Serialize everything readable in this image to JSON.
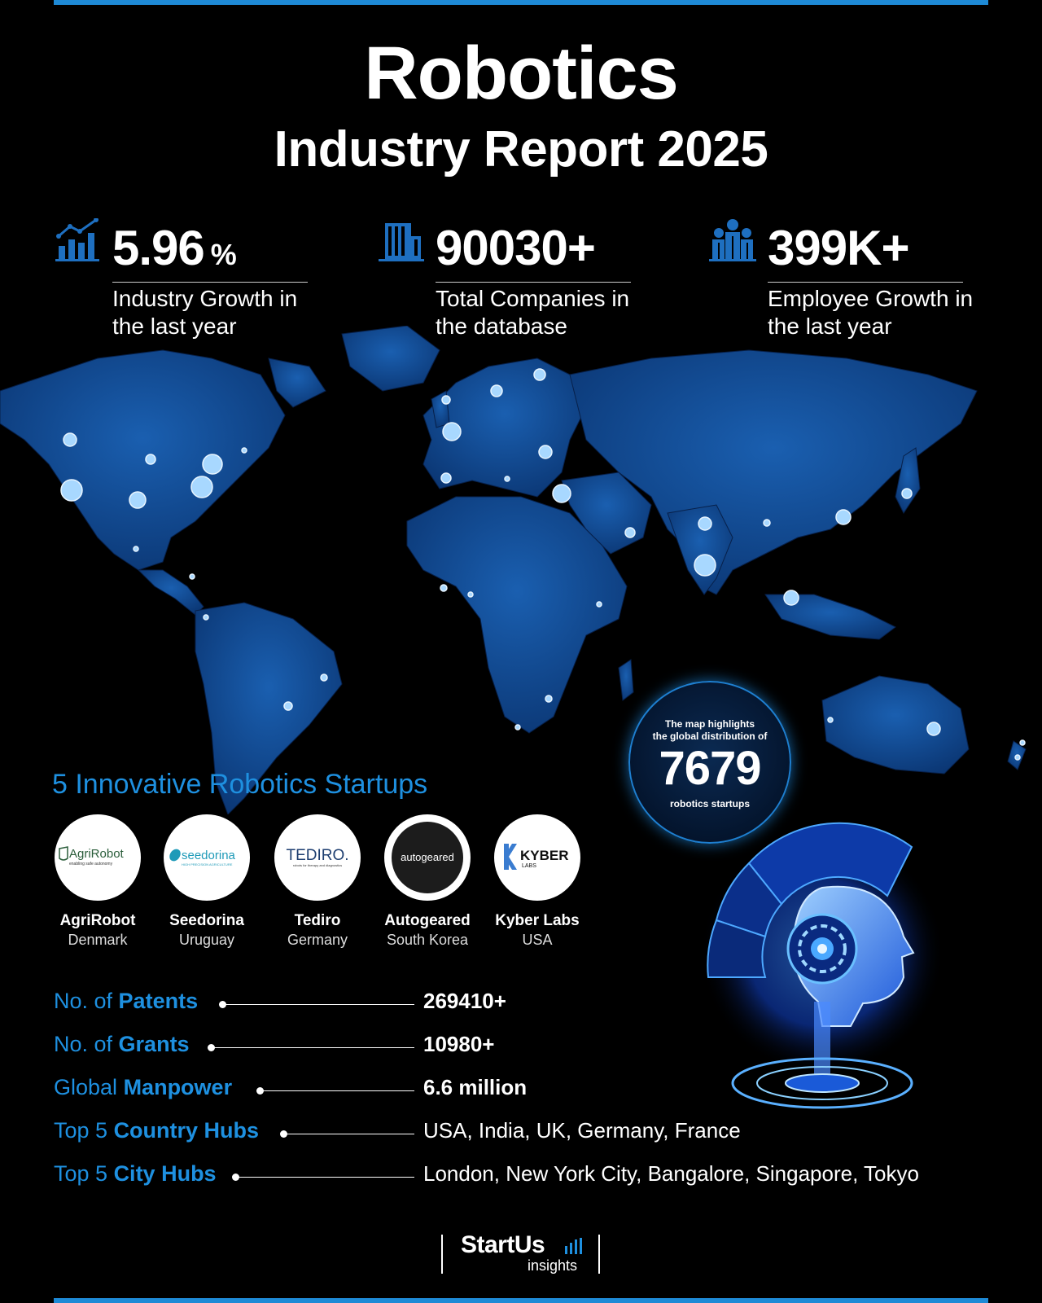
{
  "header": {
    "title": "Robotics",
    "subtitle": "Industry Report 2025"
  },
  "stats": [
    {
      "value": "5.96",
      "unit": "%",
      "description": "Industry Growth in the last year",
      "icon": "bar-chart-growth-icon"
    },
    {
      "value": "90030+",
      "unit": "",
      "description": "Total Companies in the database",
      "icon": "building-icon"
    },
    {
      "value": "399K+",
      "unit": "",
      "description": "Employee Growth in the last year",
      "icon": "people-group-icon"
    }
  ],
  "map_bubble": {
    "line1": "The map highlights",
    "line2": "the global distribution of",
    "number": "7679",
    "line3": "robotics startups"
  },
  "startups_section": {
    "title": "5 Innovative Robotics Startups",
    "items": [
      {
        "name": "AgriRobot",
        "country": "Denmark",
        "logo_text": "AgriRobot",
        "logo_tagline": "enabling safe autonomy"
      },
      {
        "name": "Seedorina",
        "country": "Uruguay",
        "logo_text": "seedorina",
        "logo_tagline": "HIGH PRECISION AGRICULTURE"
      },
      {
        "name": "Tediro",
        "country": "Germany",
        "logo_text": "TEDIRO.",
        "logo_tagline": "robots for therapy and diagnostics"
      },
      {
        "name": "Autogeared",
        "country": "South Korea",
        "logo_text": "autogeared",
        "logo_tagline": ""
      },
      {
        "name": "Kyber Labs",
        "country": "USA",
        "logo_text": "KYBER",
        "logo_tagline": "LABS"
      }
    ]
  },
  "metrics": [
    {
      "prefix": "No. of ",
      "bold": "Patents",
      "value": "269410+",
      "value_bold": true
    },
    {
      "prefix": "No. of ",
      "bold": "Grants",
      "value": "10980+",
      "value_bold": true
    },
    {
      "prefix": "Global ",
      "bold": "Manpower",
      "value": "6.6 million",
      "value_bold": true
    },
    {
      "prefix": "Top 5 ",
      "bold": "Country Hubs",
      "value": "USA, India, UK, Germany, France",
      "value_bold": false
    },
    {
      "prefix": "Top 5 ",
      "bold": "City Hubs",
      "value": "London, New York City, Bangalore, Singapore, Tokyo",
      "value_bold": false
    }
  ],
  "footer": {
    "brand": "StartUs",
    "brand_sub": "insights"
  },
  "colors": {
    "accent": "#1e90e0",
    "map_fill": "#0d4a96",
    "marker": "#a8d8ff",
    "background": "#000000"
  }
}
